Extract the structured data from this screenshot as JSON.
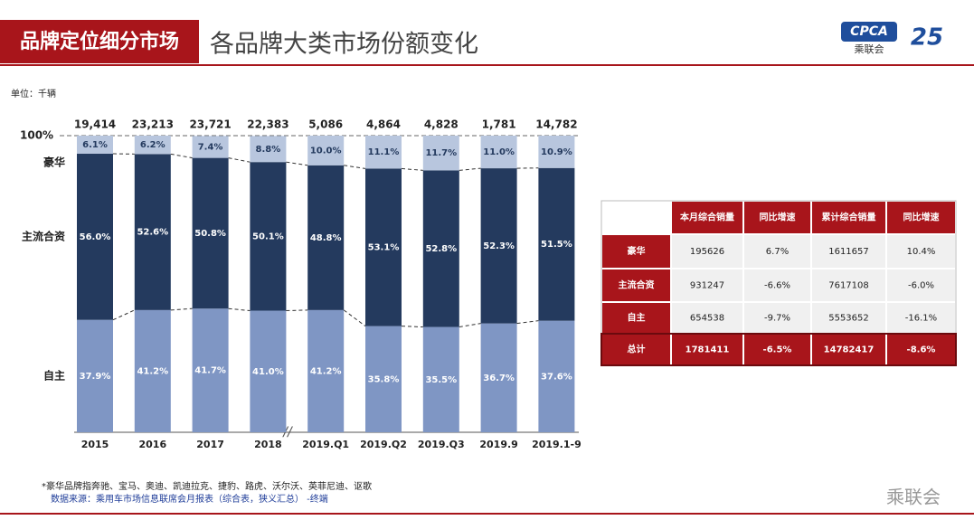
{
  "header": {
    "tag": "品牌定位细分市场",
    "title": "各品牌大类市场份额变化",
    "logo": "CPCA",
    "logo_sub": "乘联会",
    "badge": "25"
  },
  "chart_data": {
    "type": "stacked-bar",
    "unit": "单位：千辆",
    "categories": [
      "2015",
      "2016",
      "2017",
      "2018",
      "2019.Q1",
      "2019.Q2",
      "2019.Q3",
      "2019.9",
      "2019.1-9"
    ],
    "totals": {
      "values": [
        19414,
        23213,
        23721,
        22383,
        5086,
        4864,
        4828,
        1781,
        14782
      ],
      "value_labels": [
        "19,414",
        "23,213",
        "23,721",
        "22,383",
        "5,086",
        "4,864",
        "4,828",
        "1,781",
        "14,782"
      ]
    },
    "series": [
      {
        "name": "自主",
        "color": "#7f96c4",
        "values": [
          37.9,
          41.2,
          41.7,
          41.0,
          41.2,
          35.8,
          35.5,
          36.7,
          37.6
        ],
        "value_labels": [
          "37.9%",
          "41.2%",
          "41.7%",
          "41.0%",
          "41.2%",
          "35.8%",
          "35.5%",
          "36.7%",
          "37.6%"
        ]
      },
      {
        "name": "主流合资",
        "color": "#243a5e",
        "values": [
          56.0,
          52.6,
          50.8,
          50.1,
          48.8,
          53.1,
          52.8,
          52.3,
          51.5
        ],
        "value_labels": [
          "56.0%",
          "52.6%",
          "50.8%",
          "50.1%",
          "48.8%",
          "53.1%",
          "52.8%",
          "52.3%",
          "51.5%"
        ]
      },
      {
        "name": "豪华",
        "color": "#b8c6de",
        "values": [
          6.1,
          6.2,
          7.4,
          8.8,
          10.0,
          11.1,
          11.7,
          11.0,
          10.9
        ],
        "value_labels": [
          "6.1%",
          "6.2%",
          "7.4%",
          "8.8%",
          "10.0%",
          "11.1%",
          "11.7%",
          "11.0%",
          "10.9%"
        ]
      }
    ],
    "ylim": [
      0,
      100
    ],
    "yticks": [
      {
        "value": 100,
        "label": "100%"
      }
    ]
  },
  "table": {
    "columns": [
      "",
      "本月综合销量",
      "同比增速",
      "累计综合销量",
      "同比增速"
    ],
    "rows": [
      [
        "豪华",
        "195626",
        "6.7%",
        "1611657",
        "10.4%"
      ],
      [
        "主流合资",
        "931247",
        "-6.6%",
        "7617108",
        "-6.0%"
      ],
      [
        "自主",
        "654538",
        "-9.7%",
        "5553652",
        "-16.1%"
      ],
      [
        "总计",
        "1781411",
        "-6.5%",
        "14782417",
        "-8.6%"
      ]
    ]
  },
  "footer": {
    "note": "*豪华品牌指奔驰、宝马、奥迪、凯迪拉克、捷豹、路虎、沃尔沃、英菲尼迪、讴歌",
    "source": "数据来源：乘用车市场信息联席会月报表（综合表，狭义汇总） -终端",
    "watermark": "乘联会"
  }
}
